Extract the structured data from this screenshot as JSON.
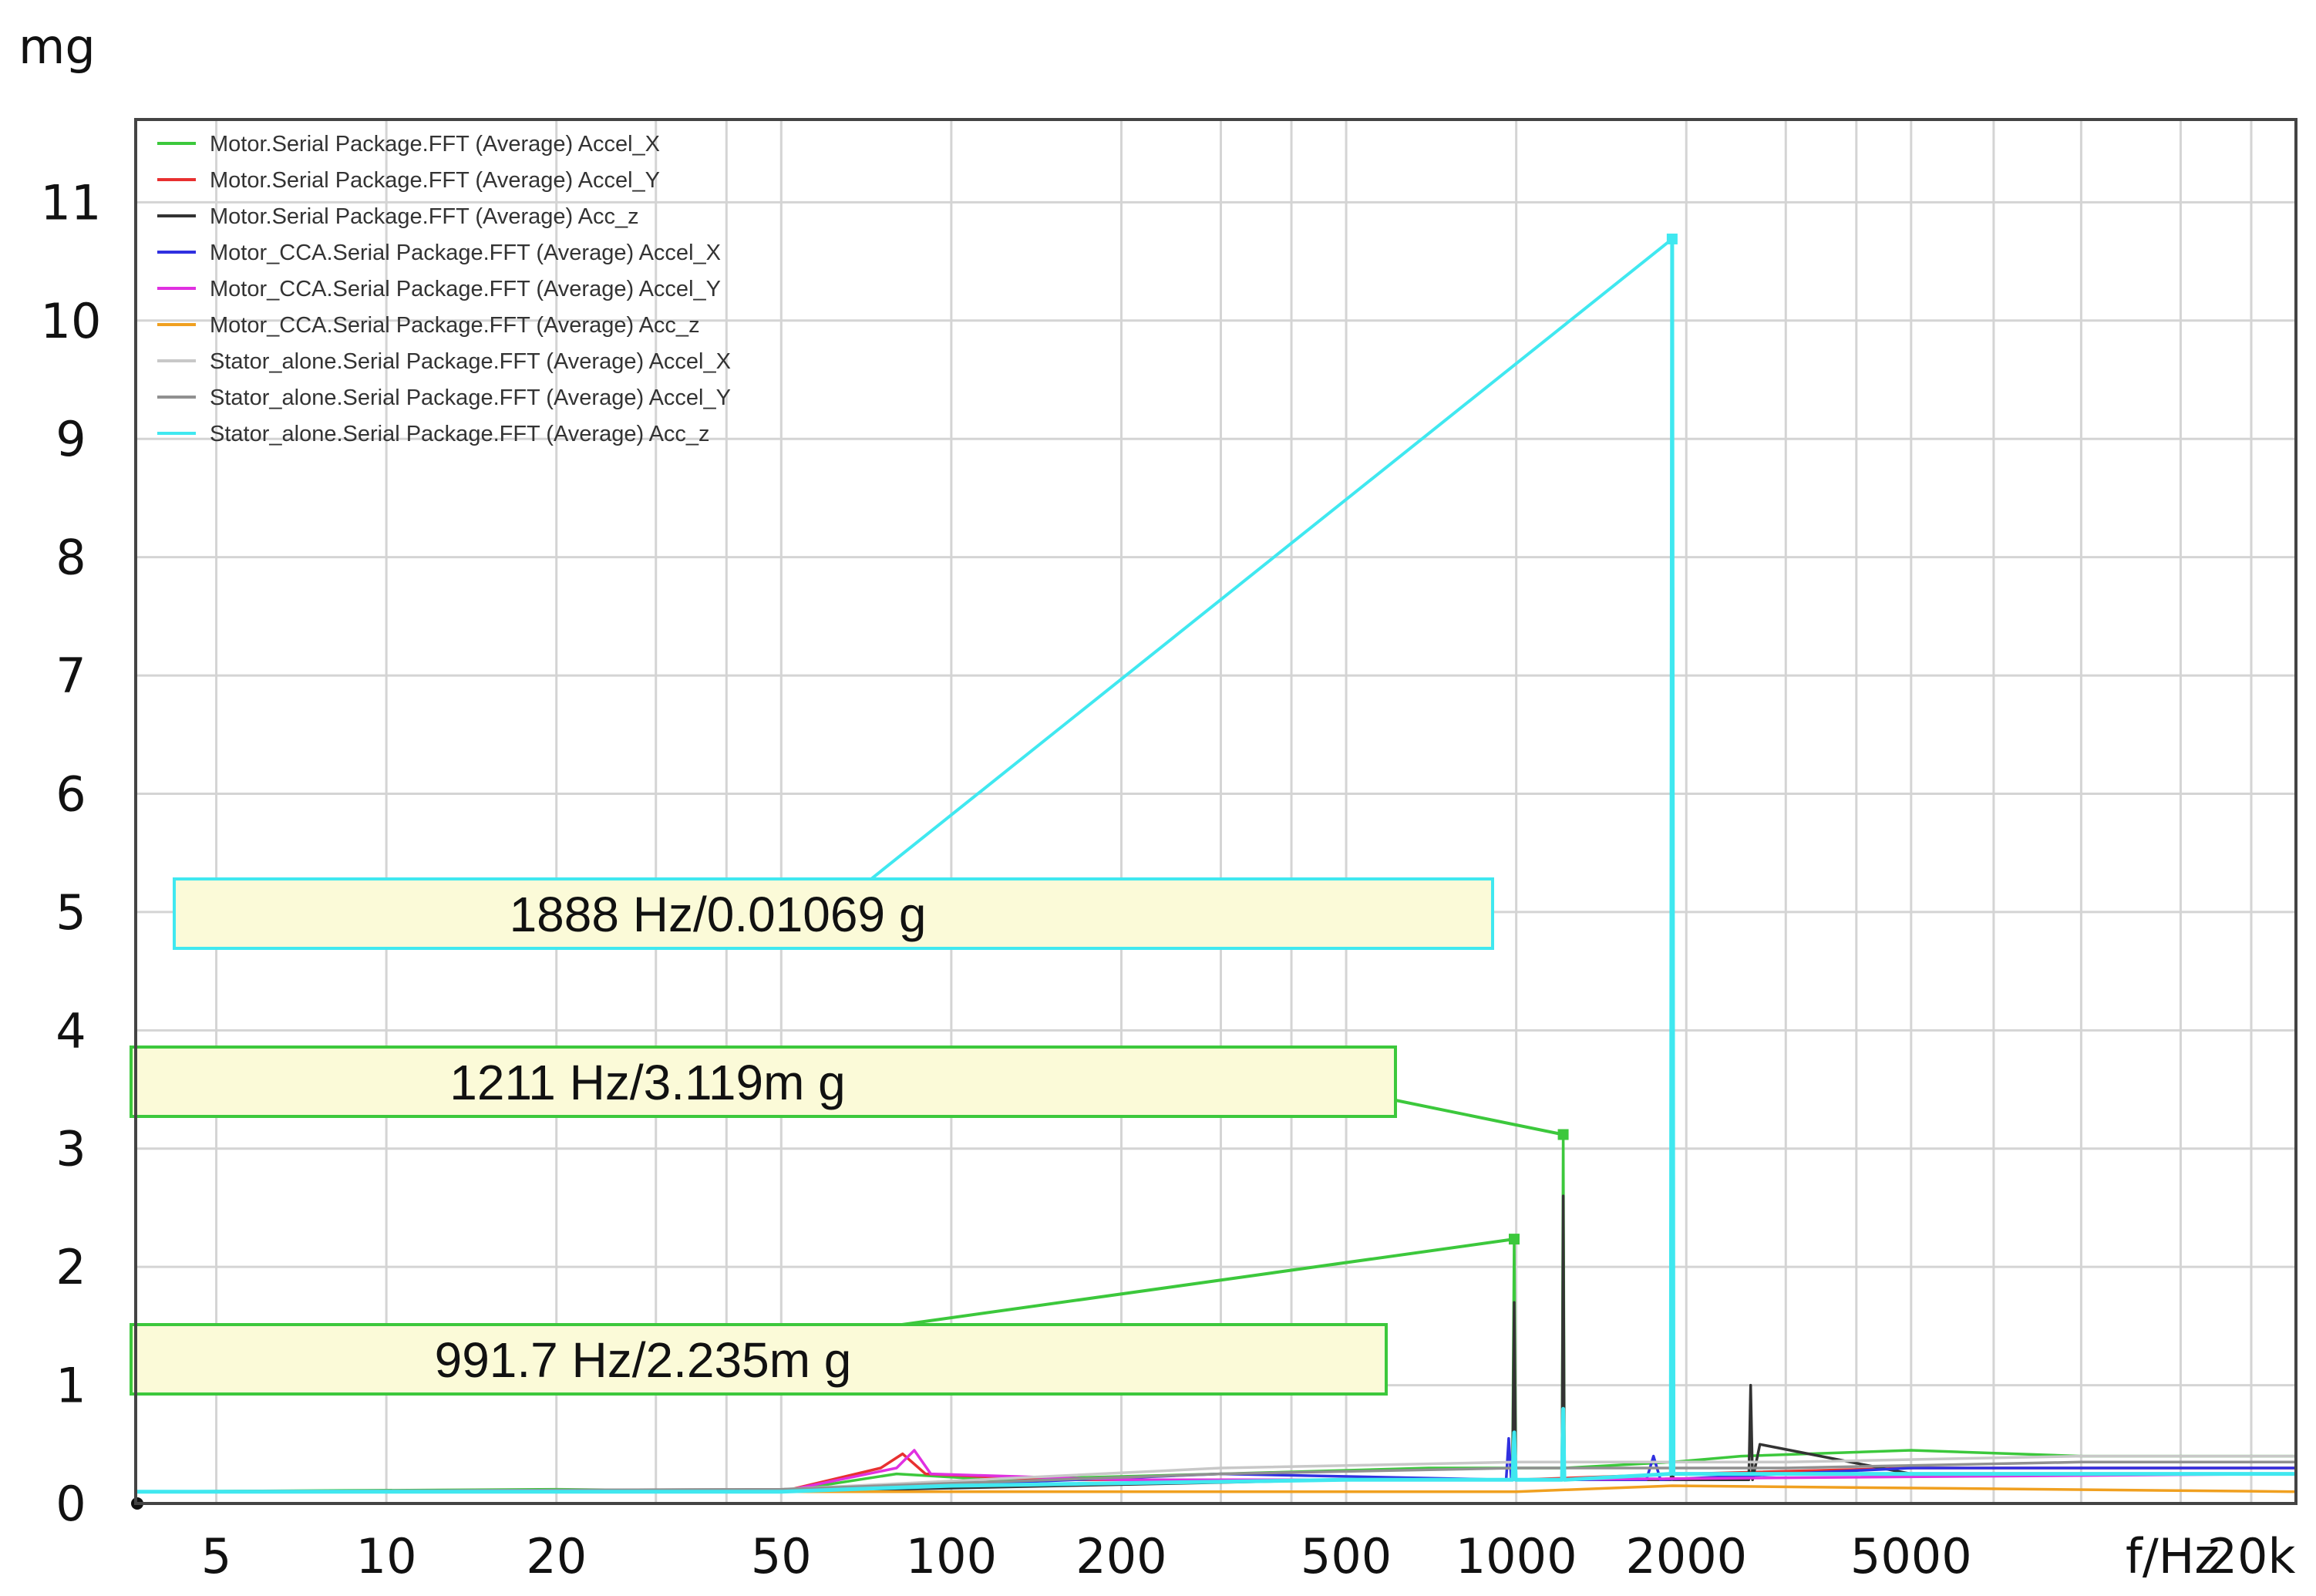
{
  "chart_data": {
    "type": "line",
    "title": "",
    "ylabel": "mg",
    "xlabel": "f/Hz",
    "x_scale": "log",
    "xlim": [
      3.6,
      24000
    ],
    "ylim": [
      0,
      11.7
    ],
    "y_ticks": [
      0,
      1,
      2,
      3,
      4,
      5,
      6,
      7,
      8,
      9,
      10,
      11
    ],
    "y_tick_labels": [
      "0",
      "1",
      "2",
      "3",
      "4",
      "5",
      "6",
      "7",
      "8",
      "9",
      "10",
      "11"
    ],
    "x_ticks": [
      5,
      10,
      20,
      50,
      100,
      200,
      500,
      1000,
      2000,
      5000,
      20000
    ],
    "x_tick_labels": [
      "5",
      "10",
      "20",
      "50",
      "100",
      "200",
      "500",
      "1000",
      "2000",
      "5000",
      "20k"
    ],
    "x_minor_gridlines": [
      30,
      40,
      300,
      400,
      3000,
      4000,
      7000,
      10000,
      15000
    ],
    "grid": true,
    "legend_position": "top-left",
    "series": [
      {
        "name": "Motor.Serial Package.FFT (Average) Accel_X",
        "color": "#3cc83c",
        "x": [
          3.6,
          20,
          50,
          80,
          120,
          300,
          700,
          985,
          991.7,
          998,
          1205,
          1211,
          1217,
          1880,
          1888,
          1896,
          2500,
          5000,
          10000,
          24000
        ],
        "y": [
          0.1,
          0.12,
          0.1,
          0.25,
          0.2,
          0.25,
          0.3,
          0.3,
          2.235,
          0.3,
          0.3,
          3.119,
          0.3,
          0.35,
          6.9,
          0.35,
          0.4,
          0.45,
          0.4,
          0.4
        ]
      },
      {
        "name": "Motor.Serial Package.FFT (Average) Accel_Y",
        "color": "#e83030",
        "x": [
          3.6,
          20,
          50,
          75,
          82,
          90,
          150,
          500,
          1000,
          2000,
          5000,
          24000
        ],
        "y": [
          0.1,
          0.11,
          0.1,
          0.3,
          0.42,
          0.25,
          0.2,
          0.2,
          0.2,
          0.25,
          0.3,
          0.3
        ]
      },
      {
        "name": "Motor.Serial Package.FFT (Average) Acc_z",
        "color": "#333333",
        "x": [
          3.6,
          50,
          500,
          985,
          991.7,
          998,
          1205,
          1211,
          1217,
          1880,
          1888,
          1896,
          2580,
          2600,
          2620,
          2700,
          5000,
          24000
        ],
        "y": [
          0.1,
          0.1,
          0.2,
          0.2,
          1.7,
          0.2,
          0.2,
          2.6,
          0.2,
          0.2,
          0.9,
          0.2,
          0.2,
          1.0,
          0.2,
          0.5,
          0.25,
          0.25
        ]
      },
      {
        "name": "Motor_CCA.Serial Package.FFT (Average) Accel_X",
        "color": "#3030e0",
        "x": [
          3.6,
          50,
          300,
          960,
          970,
          980,
          1000,
          1700,
          1750,
          1800,
          5000,
          24000
        ],
        "y": [
          0.1,
          0.1,
          0.25,
          0.2,
          0.55,
          0.2,
          0.2,
          0.2,
          0.4,
          0.2,
          0.3,
          0.3
        ]
      },
      {
        "name": "Motor_CCA.Serial Package.FFT (Average) Accel_Y",
        "color": "#e030e0",
        "x": [
          3.6,
          50,
          80,
          86,
          92,
          200,
          1000,
          24000
        ],
        "y": [
          0.1,
          0.1,
          0.3,
          0.45,
          0.25,
          0.2,
          0.2,
          0.25
        ]
      },
      {
        "name": "Motor_CCA.Serial Package.FFT (Average) Acc_z",
        "color": "#f0a020",
        "x": [
          3.6,
          100,
          1000,
          1888,
          24000
        ],
        "y": [
          0.1,
          0.1,
          0.1,
          0.15,
          0.1
        ]
      },
      {
        "name": "Stator_alone.Serial Package.FFT (Average) Accel_X",
        "color": "#c8c8c8",
        "x": [
          3.6,
          50,
          300,
          1000,
          3000,
          10000,
          24000
        ],
        "y": [
          0.1,
          0.12,
          0.3,
          0.35,
          0.35,
          0.4,
          0.4
        ]
      },
      {
        "name": "Stator_alone.Serial Package.FFT (Average) Accel_Y",
        "color": "#909090",
        "x": [
          3.6,
          50,
          300,
          1000,
          3000,
          10000,
          24000
        ],
        "y": [
          0.1,
          0.12,
          0.25,
          0.3,
          0.3,
          0.35,
          0.35
        ]
      },
      {
        "name": "Stator_alone.Serial Package.FFT (Average) Acc_z",
        "color": "#40e8f0",
        "x": [
          3.6,
          50,
          100,
          500,
          985,
          991.7,
          998,
          1205,
          1211,
          1217,
          1878,
          1888,
          1898,
          3000,
          10000,
          24000
        ],
        "y": [
          0.1,
          0.1,
          0.15,
          0.2,
          0.2,
          0.6,
          0.2,
          0.2,
          0.8,
          0.2,
          0.25,
          10.69,
          0.25,
          0.25,
          0.25,
          0.25
        ]
      }
    ],
    "annotations": [
      {
        "text": "1888 Hz/0.01069 g",
        "x": 1888,
        "y": 10.69,
        "color": "#40e8f0"
      },
      {
        "text": "1211 Hz/3.119m g",
        "x": 1211,
        "y": 3.119,
        "color": "#3cc83c"
      },
      {
        "text": "991.7 Hz/2.235m g",
        "x": 991.7,
        "y": 2.235,
        "color": "#3cc83c"
      }
    ],
    "annotation_box_fill": "#fbfad8",
    "grid_color": "#d4d4d4"
  }
}
